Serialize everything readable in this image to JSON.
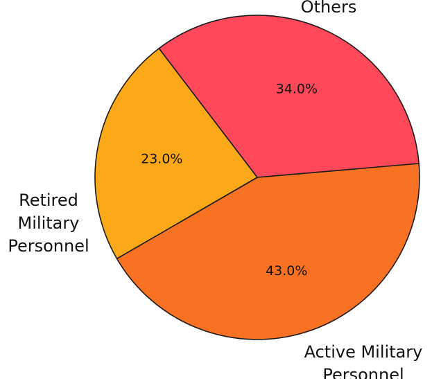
{
  "chart_data": {
    "type": "pie",
    "categories": [
      "Others",
      "Active Military Personnel",
      "Retired Military Personnel"
    ],
    "values": [
      34.0,
      43.0,
      23.0
    ],
    "value_labels": [
      "34.0%",
      "43.0%",
      "23.0%"
    ],
    "label_lines": [
      [
        "Others"
      ],
      [
        "Active Military",
        "Personnel"
      ],
      [
        "Retired",
        "Military",
        "Personnel"
      ]
    ],
    "colors": [
      "#ff4859",
      "#f97223",
      "#fba918"
    ],
    "start_angle_deg": 127.3,
    "direction": "clockwise",
    "title": "",
    "legend": "none"
  }
}
